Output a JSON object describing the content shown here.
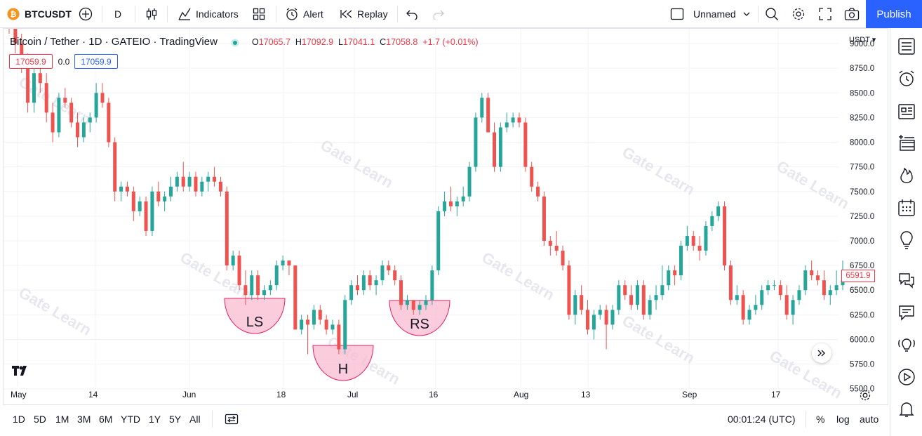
{
  "toolbar": {
    "symbol": "BTCUSDT",
    "interval": "D",
    "indicators_label": "Indicators",
    "alert_label": "Alert",
    "replay_label": "Replay",
    "layout_name": "Unnamed",
    "publish_label": "Publish",
    "icons": [
      "symbol-logo-icon",
      "add-symbol-icon",
      "bar-style-icon",
      "indicators-icon",
      "templates-icon",
      "alert-icon",
      "replay-icon",
      "undo-icon",
      "redo-icon",
      "layout-icon",
      "chevron-down-icon",
      "search-icon",
      "gear-icon",
      "fullscreen-icon",
      "camera-icon"
    ]
  },
  "legend": {
    "title": "Bitcoin / Tether · 1D · GATEIO · TradingView",
    "open_label": "O",
    "open": "17065.7",
    "high_label": "H",
    "high": "17092.9",
    "low_label": "L",
    "low": "17041.1",
    "close_label": "C",
    "close": "17058.8",
    "change": "+1.7 (+0.01%)",
    "sell_price": "17059.9",
    "spread": "0.0",
    "buy_price": "17059.9"
  },
  "price_scale": {
    "currency": "USDT",
    "current_price": "6591.9"
  },
  "time_ranges": [
    "1D",
    "5D",
    "1M",
    "3M",
    "6M",
    "YTD",
    "1Y",
    "5Y",
    "All"
  ],
  "clock": "00:01:24 (UTC)",
  "scale_options": [
    "%",
    "log",
    "auto"
  ],
  "colors": {
    "up": "#26a69a",
    "down": "#ef5350",
    "accent": "#2962ff",
    "pattern_fill": "#f8bbd0",
    "pattern_stroke": "#e91e63"
  },
  "right_toolbar_icons": [
    "watchlist-icon",
    "alarm-clock-icon",
    "news-icon",
    "add-list-icon",
    "hotlist-fire-icon",
    "calendar-icon",
    "ideas-bulb-icon",
    "chat-icon",
    "messages-icon",
    "signal-bulb-icon",
    "play-stream-icon",
    "bell-icon"
  ],
  "watermark": "Gate Learn",
  "chart_data": {
    "type": "candlestick",
    "title": "Bitcoin / Tether · 1D · GATEIO · TradingView",
    "ylim": [
      5450,
      9100
    ],
    "y_ticks": [
      5500,
      5750,
      6000,
      6250,
      6500,
      6750,
      7000,
      7250,
      7500,
      7750,
      8000,
      8250,
      8500,
      8750,
      9000
    ],
    "y_tick_labels": [
      "5500.0",
      "5750.0",
      "6000.0",
      "6250.0",
      "6500.0",
      "6750.0",
      "7000.0",
      "7250.0",
      "7500.0",
      "7750.0",
      "8000.0",
      "8250.0",
      "8500.0",
      "8750.0",
      "9000.0"
    ],
    "x_tick_labels": [
      "May",
      "14",
      "Jun",
      "18",
      "Jul",
      "16",
      "Aug",
      "13",
      "Sep",
      "17"
    ],
    "grid": true,
    "candles": [
      [
        9200,
        9300,
        9100,
        9150
      ],
      [
        9150,
        9250,
        8900,
        9000
      ],
      [
        9000,
        9100,
        8700,
        8800
      ],
      [
        8800,
        8900,
        8300,
        8400
      ],
      [
        8400,
        8800,
        8300,
        8700
      ],
      [
        8700,
        8800,
        8500,
        8600
      ],
      [
        8600,
        8700,
        8200,
        8300
      ],
      [
        8300,
        8400,
        8000,
        8100
      ],
      [
        8100,
        8500,
        8050,
        8450
      ],
      [
        8450,
        8550,
        8350,
        8400
      ],
      [
        8400,
        8450,
        8150,
        8200
      ],
      [
        8200,
        8300,
        7950,
        8050
      ],
      [
        8050,
        8250,
        8000,
        8200
      ],
      [
        8200,
        8300,
        8100,
        8250
      ],
      [
        8250,
        8600,
        8200,
        8500
      ],
      [
        8500,
        8600,
        8350,
        8400
      ],
      [
        8400,
        8450,
        7950,
        8000
      ],
      [
        8000,
        8050,
        7400,
        7500
      ],
      [
        7500,
        7600,
        7400,
        7550
      ],
      [
        7550,
        7600,
        7450,
        7500
      ],
      [
        7500,
        7550,
        7200,
        7300
      ],
      [
        7300,
        7450,
        7250,
        7400
      ],
      [
        7400,
        7450,
        7050,
        7100
      ],
      [
        7100,
        7550,
        7050,
        7500
      ],
      [
        7500,
        7600,
        7350,
        7400
      ],
      [
        7400,
        7500,
        7300,
        7450
      ],
      [
        7450,
        7650,
        7400,
        7550
      ],
      [
        7550,
        7700,
        7500,
        7650
      ],
      [
        7650,
        7800,
        7500,
        7550
      ],
      [
        7550,
        7700,
        7500,
        7650
      ],
      [
        7650,
        7700,
        7450,
        7500
      ],
      [
        7500,
        7650,
        7450,
        7600
      ],
      [
        7600,
        7700,
        7500,
        7650
      ],
      [
        7650,
        7750,
        7550,
        7600
      ],
      [
        7600,
        7650,
        7450,
        7500
      ],
      [
        7500,
        7550,
        6700,
        6750
      ],
      [
        6750,
        6900,
        6700,
        6850
      ],
      [
        6850,
        6900,
        6500,
        6550
      ],
      [
        6550,
        6700,
        6350,
        6450
      ],
      [
        6450,
        6700,
        6400,
        6650
      ],
      [
        6650,
        6700,
        6400,
        6450
      ],
      [
        6450,
        6550,
        6400,
        6500
      ],
      [
        6500,
        6600,
        6450,
        6550
      ],
      [
        6550,
        6800,
        6500,
        6750
      ],
      [
        6750,
        6850,
        6700,
        6800
      ],
      [
        6800,
        6800,
        6650,
        6750
      ],
      [
        6750,
        6750,
        6100,
        6100
      ],
      [
        6100,
        6250,
        6050,
        6200
      ],
      [
        6200,
        6250,
        5850,
        6150
      ],
      [
        6150,
        6350,
        6100,
        6300
      ],
      [
        6300,
        6350,
        6150,
        6200
      ],
      [
        6200,
        6250,
        6050,
        6100
      ],
      [
        6100,
        6200,
        6050,
        6150
      ],
      [
        6150,
        6200,
        5850,
        5900
      ],
      [
        5900,
        6450,
        5850,
        6400
      ],
      [
        6400,
        6600,
        6350,
        6550
      ],
      [
        6550,
        6650,
        6450,
        6500
      ],
      [
        6500,
        6700,
        6450,
        6650
      ],
      [
        6650,
        6700,
        6500,
        6550
      ],
      [
        6550,
        6650,
        6450,
        6600
      ],
      [
        6600,
        6800,
        6550,
        6750
      ],
      [
        6750,
        6800,
        6650,
        6700
      ],
      [
        6700,
        6750,
        6550,
        6600
      ],
      [
        6600,
        6650,
        6300,
        6350
      ],
      [
        6350,
        6450,
        6300,
        6400
      ],
      [
        6400,
        6400,
        6250,
        6300
      ],
      [
        6300,
        6400,
        6250,
        6350
      ],
      [
        6350,
        6450,
        6300,
        6400
      ],
      [
        6400,
        6750,
        6350,
        6700
      ],
      [
        6700,
        7350,
        6650,
        7300
      ],
      [
        7300,
        7500,
        7250,
        7400
      ],
      [
        7400,
        7550,
        7300,
        7350
      ],
      [
        7350,
        7450,
        7250,
        7400
      ],
      [
        7400,
        7550,
        7350,
        7450
      ],
      [
        7450,
        7800,
        7400,
        7750
      ],
      [
        7750,
        8300,
        7700,
        8250
      ],
      [
        8250,
        8500,
        8200,
        8450
      ],
      [
        8450,
        8500,
        8100,
        8100
      ],
      [
        8100,
        8200,
        7700,
        7750
      ],
      [
        7750,
        8200,
        7700,
        8150
      ],
      [
        8150,
        8300,
        8100,
        8200
      ],
      [
        8200,
        8300,
        8150,
        8250
      ],
      [
        8250,
        8300,
        8150,
        8200
      ],
      [
        8200,
        8250,
        7700,
        7750
      ],
      [
        7750,
        7800,
        7500,
        7550
      ],
      [
        7550,
        7600,
        7400,
        7450
      ],
      [
        7450,
        7500,
        6950,
        7000
      ],
      [
        7000,
        7050,
        6850,
        6950
      ],
      [
        6950,
        7100,
        6850,
        6900
      ],
      [
        6900,
        6950,
        6700,
        6750
      ],
      [
        6750,
        6800,
        6200,
        6250
      ],
      [
        6250,
        6500,
        6150,
        6450
      ],
      [
        6450,
        6550,
        6250,
        6300
      ],
      [
        6300,
        6400,
        6050,
        6100
      ],
      [
        6100,
        6300,
        6000,
        6250
      ],
      [
        6250,
        6350,
        6200,
        6300
      ],
      [
        6300,
        6350,
        5900,
        6150
      ],
      [
        6150,
        6350,
        6100,
        6300
      ],
      [
        6300,
        6600,
        6250,
        6550
      ],
      [
        6550,
        6600,
        6400,
        6450
      ],
      [
        6450,
        6550,
        6300,
        6350
      ],
      [
        6350,
        6600,
        6300,
        6550
      ],
      [
        6550,
        6600,
        6200,
        6250
      ],
      [
        6250,
        6450,
        6200,
        6400
      ],
      [
        6400,
        6550,
        6300,
        6450
      ],
      [
        6450,
        6750,
        6400,
        6550
      ],
      [
        6550,
        6750,
        6500,
        6700
      ],
      [
        6700,
        6750,
        6550,
        6650
      ],
      [
        6650,
        7000,
        6600,
        6950
      ],
      [
        6950,
        7150,
        6900,
        7050
      ],
      [
        7050,
        7100,
        6900,
        6950
      ],
      [
        6950,
        7050,
        6800,
        6900
      ],
      [
        6900,
        7200,
        6850,
        7150
      ],
      [
        7150,
        7300,
        7100,
        7250
      ],
      [
        7250,
        7400,
        7200,
        7350
      ],
      [
        7350,
        7400,
        6700,
        6750
      ],
      [
        6750,
        6800,
        6350,
        6400
      ],
      [
        6400,
        6550,
        6350,
        6450
      ],
      [
        6450,
        6500,
        6150,
        6200
      ],
      [
        6200,
        6350,
        6150,
        6300
      ],
      [
        6300,
        6450,
        6250,
        6350
      ],
      [
        6350,
        6550,
        6300,
        6500
      ],
      [
        6500,
        6600,
        6450,
        6550
      ],
      [
        6550,
        6600,
        6500,
        6550
      ],
      [
        6550,
        6600,
        6400,
        6450
      ],
      [
        6450,
        6550,
        6200,
        6250
      ],
      [
        6250,
        6450,
        6150,
        6400
      ],
      [
        6400,
        6550,
        6350,
        6500
      ],
      [
        6500,
        6750,
        6450,
        6700
      ],
      [
        6700,
        6800,
        6600,
        6650
      ],
      [
        6650,
        6700,
        6550,
        6600
      ],
      [
        6600,
        6700,
        6400,
        6450
      ],
      [
        6450,
        6550,
        6350,
        6500
      ],
      [
        6500,
        6700,
        6450,
        6550
      ],
      [
        6550,
        6800,
        6500,
        6600
      ]
    ],
    "annotations": [
      {
        "label": "LS"
      },
      {
        "label": "H"
      },
      {
        "label": "RS"
      }
    ]
  }
}
